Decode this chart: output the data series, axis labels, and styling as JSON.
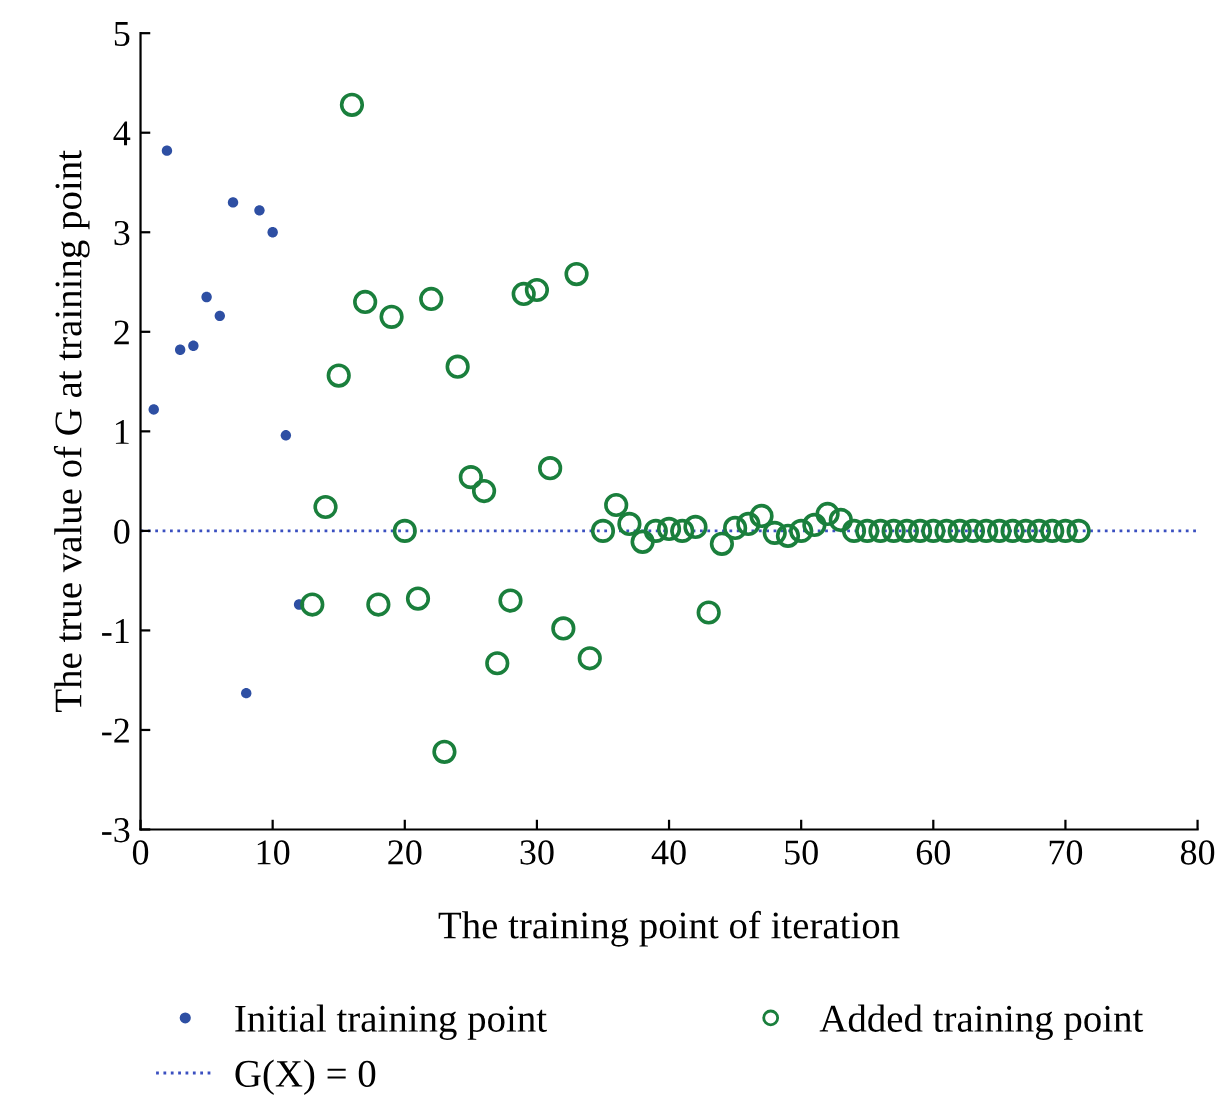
{
  "chart_data": {
    "type": "scatter",
    "xlabel": "The training point of iteration",
    "ylabel": "The true value of G at training point",
    "xlim": [
      0,
      80
    ],
    "xticks": [
      0,
      10,
      20,
      30,
      40,
      50,
      60,
      70,
      80
    ],
    "ylim": [
      -3,
      5
    ],
    "yticks": [
      -3,
      -2,
      -1,
      0,
      1,
      2,
      3,
      4,
      5
    ],
    "grid": false,
    "legend": "bottom",
    "ref_lines": [
      {
        "axis": "y",
        "value": 0,
        "label": "G(X) = 0",
        "color": "#3a4fc0",
        "line_style": "dotted"
      }
    ],
    "series": [
      {
        "name": "Initial training point",
        "color": "#2e4fa3",
        "marker": "circle",
        "x": [
          1,
          2,
          3,
          4,
          5,
          6,
          7,
          8,
          9,
          10,
          11,
          12
        ],
        "values": [
          1.22,
          3.82,
          1.82,
          1.86,
          2.35,
          2.16,
          3.3,
          -1.63,
          3.22,
          3.0,
          0.96,
          -0.74
        ]
      },
      {
        "name": "Added training point",
        "color": "#1a7f3c",
        "marker": "circle",
        "x": [
          13,
          14,
          15,
          16,
          17,
          18,
          19,
          20,
          21,
          22,
          23,
          24,
          25,
          26,
          27,
          28,
          29,
          30,
          31,
          32,
          33,
          34,
          35,
          36,
          37,
          38,
          39,
          40,
          41,
          42,
          43,
          44,
          45,
          46,
          47,
          48,
          49,
          50,
          51,
          52,
          53,
          54,
          55,
          56,
          57,
          58,
          59,
          60,
          61,
          62,
          63,
          64,
          65,
          66,
          67,
          68,
          69,
          70,
          71
        ],
        "values": [
          -0.74,
          0.24,
          1.56,
          4.28,
          2.3,
          -0.74,
          2.15,
          0.0,
          -0.68,
          2.33,
          -2.22,
          1.65,
          0.54,
          0.4,
          -1.33,
          -0.7,
          2.38,
          2.42,
          0.63,
          -0.98,
          2.58,
          -1.28,
          0.0,
          0.26,
          0.07,
          -0.11,
          0.0,
          0.02,
          0.0,
          0.04,
          -0.82,
          -0.13,
          0.03,
          0.07,
          0.15,
          -0.02,
          -0.05,
          0.0,
          0.06,
          0.17,
          0.11,
          0,
          0,
          0,
          0,
          0,
          0,
          0,
          0,
          0,
          0,
          0,
          0,
          0,
          0,
          0,
          0,
          0,
          0
        ]
      }
    ]
  }
}
